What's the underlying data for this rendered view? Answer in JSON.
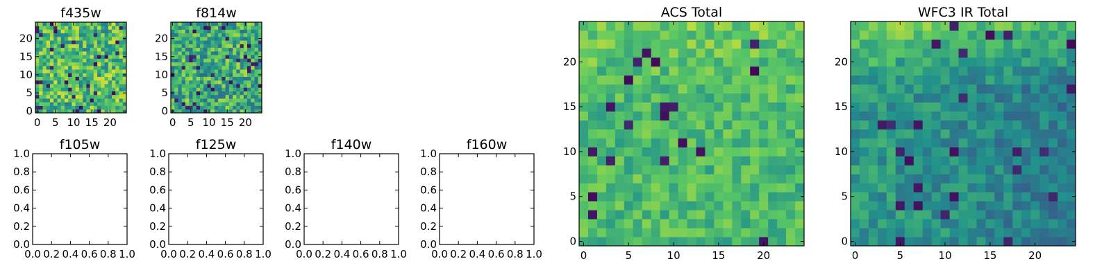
{
  "colormap": "viridis",
  "colors": {
    "viridis_stops": [
      "#440154",
      "#3b528b",
      "#21918c",
      "#5ec962",
      "#fde725"
    ]
  },
  "chart_data": [
    {
      "id": "f435w",
      "type": "heatmap",
      "title": "f435w",
      "grid": [
        25,
        25
      ],
      "xlim": [
        -0.5,
        24.5
      ],
      "ylim": [
        -0.5,
        24.5
      ],
      "xticks": [
        0,
        5,
        10,
        15,
        20
      ],
      "yticks": [
        0,
        5,
        10,
        15,
        20
      ],
      "seed": 11,
      "mean": 0.68,
      "spread": 0.26,
      "dark_prob": 0.05
    },
    {
      "id": "f814w",
      "type": "heatmap",
      "title": "f814w",
      "grid": [
        25,
        25
      ],
      "xlim": [
        -0.5,
        24.5
      ],
      "ylim": [
        -0.5,
        24.5
      ],
      "xticks": [
        0,
        5,
        10,
        15,
        20
      ],
      "yticks": [
        0,
        5,
        10,
        15,
        20
      ],
      "seed": 23,
      "mean": 0.62,
      "spread": 0.26,
      "dark_prob": 0.05
    },
    {
      "id": "f105w",
      "type": "heatmap",
      "title": "f105w",
      "empty": true,
      "xlim": [
        0,
        1
      ],
      "ylim": [
        0,
        1
      ],
      "xticks": [
        "0.0",
        "0.2",
        "0.4",
        "0.6",
        "0.8",
        "1.0"
      ],
      "yticks": [
        "0.0",
        "0.2",
        "0.4",
        "0.6",
        "0.8",
        "1.0"
      ]
    },
    {
      "id": "f125w",
      "type": "heatmap",
      "title": "f125w",
      "empty": true,
      "xlim": [
        0,
        1
      ],
      "ylim": [
        0,
        1
      ],
      "xticks": [
        "0.0",
        "0.2",
        "0.4",
        "0.6",
        "0.8",
        "1.0"
      ],
      "yticks": [
        "0.0",
        "0.2",
        "0.4",
        "0.6",
        "0.8",
        "1.0"
      ]
    },
    {
      "id": "f140w",
      "type": "heatmap",
      "title": "f140w",
      "empty": true,
      "xlim": [
        0,
        1
      ],
      "ylim": [
        0,
        1
      ],
      "xticks": [
        "0.0",
        "0.2",
        "0.4",
        "0.6",
        "0.8",
        "1.0"
      ],
      "yticks": [
        "0.0",
        "0.2",
        "0.4",
        "0.6",
        "0.8",
        "1.0"
      ]
    },
    {
      "id": "f160w",
      "type": "heatmap",
      "title": "f160w",
      "empty": true,
      "xlim": [
        0,
        1
      ],
      "ylim": [
        0,
        1
      ],
      "xticks": [
        "0.0",
        "0.2",
        "0.4",
        "0.6",
        "0.8",
        "1.0"
      ],
      "yticks": [
        "0.0",
        "0.2",
        "0.4",
        "0.6",
        "0.8",
        "1.0"
      ]
    },
    {
      "id": "acs-total",
      "type": "heatmap",
      "title": "ACS Total",
      "grid": [
        25,
        25
      ],
      "xlim": [
        -0.5,
        24.5
      ],
      "ylim": [
        -0.5,
        24.5
      ],
      "xticks": [
        0,
        5,
        10,
        15,
        20
      ],
      "yticks": [
        0,
        5,
        10,
        15,
        20
      ],
      "seed": 37,
      "mean": 0.68,
      "spread": 0.14,
      "dark_prob": 0.035,
      "top_boost": 0.1
    },
    {
      "id": "wfc3-ir-total",
      "type": "heatmap",
      "title": "WFC3 IR Total",
      "grid": [
        25,
        25
      ],
      "xlim": [
        -0.5,
        24.5
      ],
      "ylim": [
        -0.5,
        24.5
      ],
      "xticks": [
        0,
        5,
        10,
        15,
        20
      ],
      "yticks": [
        0,
        5,
        10,
        15,
        20
      ],
      "seed": 53,
      "mean": 0.54,
      "spread": 0.13,
      "dark_prob": 0.05,
      "top_boost": 0.28,
      "right_drop": 0.12
    }
  ]
}
